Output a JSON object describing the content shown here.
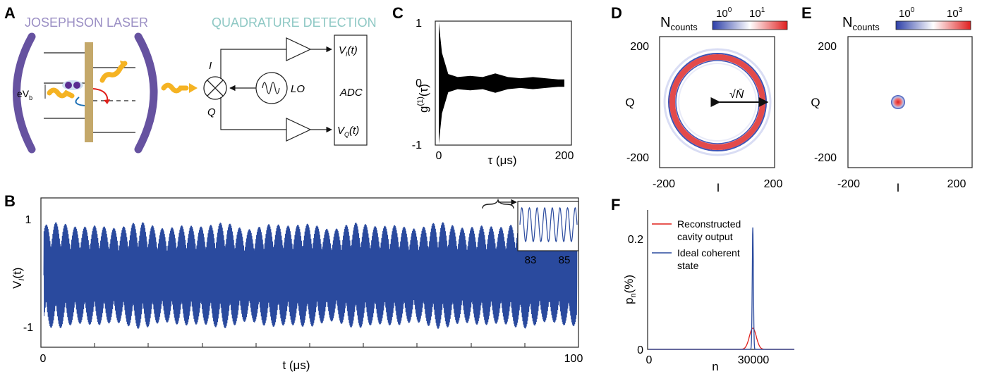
{
  "panels": {
    "A": {
      "letter": "A",
      "title_left": "JOSEPHSON LASER",
      "title_right": "QUADRATURE DETECTION",
      "bias_label_main": "eV",
      "bias_label_sub": "b",
      "i_label": "I",
      "q_label": "Q",
      "lo_label": "LO",
      "adc_label": "ADC",
      "vi_main": "V",
      "vi_sub": "I",
      "vi_tail": "(t)",
      "vq_main": "V",
      "vq_sub": "Q",
      "vq_tail": "(t)",
      "colors": {
        "cavity": "#6652a0",
        "junction": "#c4a86a",
        "photon": "#f5b323",
        "title_left": "#9b8fc4",
        "title_right": "#8ec8c4",
        "cooper_pair": "#5a2d91",
        "arrow_red": "#e0201b",
        "arrow_blue": "#1a6fb5"
      }
    },
    "B": {
      "letter": "B",
      "ylabel_main": "V",
      "ylabel_sub": "I",
      "ylabel_tail": "(t)",
      "yticks": [
        "1",
        "-1"
      ],
      "xticks": [
        "0",
        "100"
      ],
      "xlabel": "t (μs)",
      "inset_xticks": [
        "83",
        "85"
      ],
      "color": "#2a4a9e"
    },
    "C": {
      "letter": "C",
      "ylabel": "g(1)(τ)",
      "ylabel_main": "g",
      "ylabel_sup": "(1)",
      "ylabel_tail": "(τ)",
      "yticks": [
        "1",
        "0",
        "-1"
      ],
      "xticks": [
        "0",
        "200"
      ],
      "xlabel": "τ (μs)"
    },
    "D": {
      "letter": "D",
      "cbar_label_main": "N",
      "cbar_label_sub": "counts",
      "cbar_tick_1": "10",
      "cbar_tick_1_exp": "0",
      "cbar_tick_2": "10",
      "cbar_tick_2_exp": "1",
      "yticks": [
        "200",
        "0",
        "-200"
      ],
      "xticks": [
        "-200",
        "0",
        "200"
      ],
      "xlabel": "I",
      "ylabel": "Q",
      "annotation": "√N̄"
    },
    "E": {
      "letter": "E",
      "cbar_label_main": "N",
      "cbar_label_sub": "counts",
      "cbar_tick_1": "10",
      "cbar_tick_1_exp": "0",
      "cbar_tick_2": "10",
      "cbar_tick_2_exp": "3",
      "yticks": [
        "200",
        "0",
        "-200"
      ],
      "xticks": [
        "-200",
        "0",
        "200"
      ],
      "xlabel": "I",
      "ylabel": "Q"
    },
    "F": {
      "letter": "F",
      "ylabel_main": "p",
      "ylabel_sub": "n",
      "ylabel_tail": "(%)",
      "yticks": [
        "0.2",
        "0"
      ],
      "xticks": [
        "0",
        "30000"
      ],
      "xlabel": "n",
      "legend": [
        {
          "line1": "Reconstructed",
          "line2": "cavity output",
          "color": "#e0201b"
        },
        {
          "line1": "Ideal coherent",
          "line2": "state",
          "color": "#2a4a9e"
        }
      ]
    }
  },
  "chart_data": [
    {
      "panel": "B",
      "type": "line",
      "xlabel": "t (μs)",
      "ylabel": "V_I(t)",
      "xlim": [
        0,
        100
      ],
      "ylim": [
        -1.2,
        1.2
      ],
      "description_of_signal": "fast oscillation with amplitude ≈ 1",
      "amplitude": 1,
      "inset": {
        "xlim": [
          82,
          86
        ],
        "amplitude": 1
      }
    },
    {
      "panel": "C",
      "type": "line",
      "xlabel": "τ (μs)",
      "ylabel": "g(1)(τ)",
      "xlim": [
        0,
        200
      ],
      "ylim": [
        -1,
        1
      ],
      "envelope_points": [
        [
          0,
          1
        ],
        [
          5,
          0.5
        ],
        [
          15,
          0.15
        ],
        [
          30,
          0.1
        ],
        [
          50,
          0.12
        ],
        [
          70,
          0.1
        ],
        [
          90,
          0.16
        ],
        [
          110,
          0.1
        ],
        [
          130,
          0.08
        ],
        [
          150,
          0.1
        ],
        [
          170,
          0.08
        ],
        [
          190,
          0.06
        ],
        [
          200,
          0.06
        ]
      ]
    },
    {
      "panel": "D",
      "type": "heatmap",
      "xlabel": "I",
      "ylabel": "Q",
      "xlim": [
        -250,
        250
      ],
      "ylim": [
        -250,
        250
      ],
      "ring_radius": 175,
      "colorbar_range": [
        1,
        10
      ],
      "colorbar_scale": "log"
    },
    {
      "panel": "E",
      "type": "heatmap",
      "xlabel": "I",
      "ylabel": "Q",
      "xlim": [
        -250,
        250
      ],
      "ylim": [
        -250,
        250
      ],
      "spot_center": [
        0,
        0
      ],
      "colorbar_range": [
        1,
        1000
      ],
      "colorbar_scale": "log"
    },
    {
      "panel": "F",
      "type": "line",
      "xlabel": "n",
      "ylabel": "p_n (%)",
      "xlim": [
        0,
        42000
      ],
      "ylim": [
        0,
        0.25
      ],
      "series": [
        {
          "name": "Reconstructed cavity output",
          "peak_n": 30000,
          "peak": 0.04,
          "sigma": 1000
        },
        {
          "name": "Ideal coherent state",
          "peak_n": 30000,
          "peak": 0.23,
          "sigma": 173
        }
      ]
    }
  ]
}
